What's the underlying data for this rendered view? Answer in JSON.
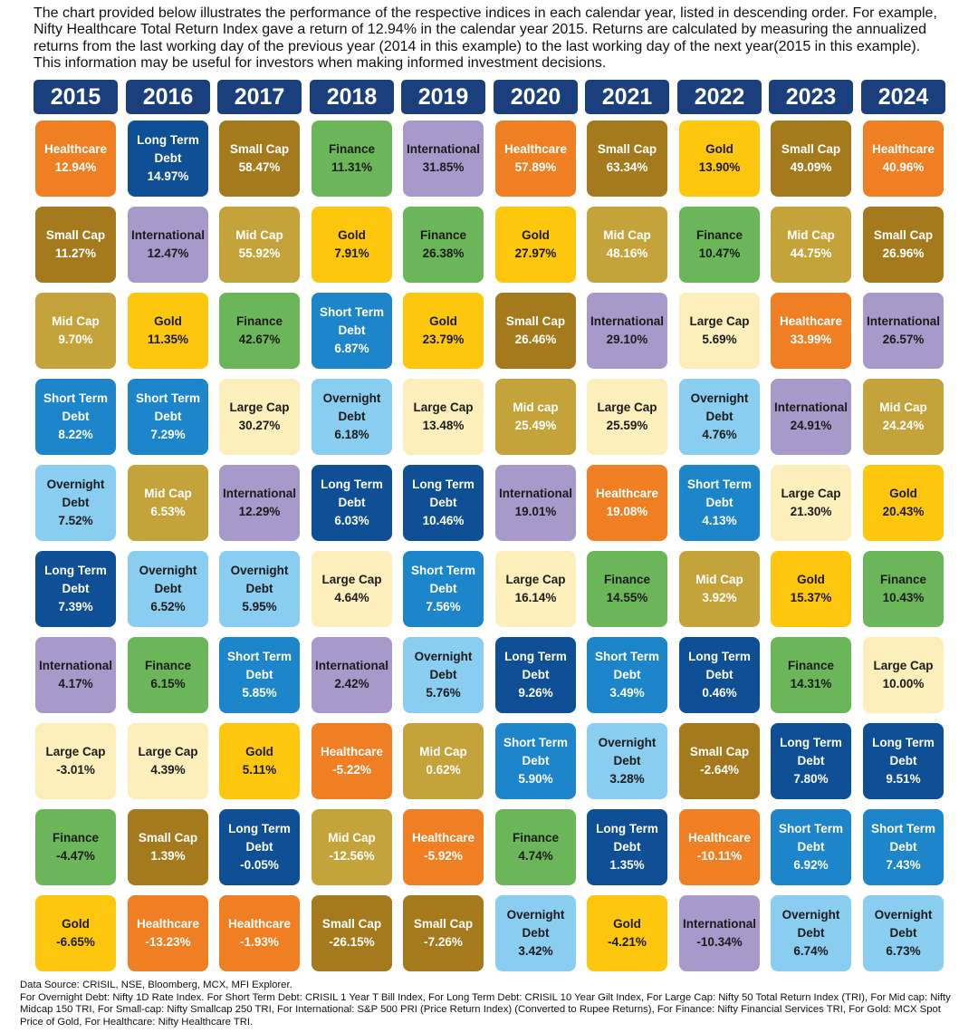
{
  "intro_text": "The chart provided below illustrates the performance of the respective indices in each calendar year, listed in descending order. For example, Nifty Healthcare Total Return Index gave a return of 12.94% in the calendar year 2015. Returns are calculated by measuring the annualized returns from the last working day of the previous year (2014 in this example) to the last working day of the next year(2015 in this example). This information may be useful for investors when making informed investment decisions.",
  "footer": {
    "source": "Data Source: CRISIL, NSE, Bloomberg, MCX, MFI Explorer.",
    "notes": "For Overnight Debt: Nifty 1D Rate Index. For Short Term Debt: CRISIL 1 Year T Bill Index, For Long Term Debt: CRISIL 10 Year Gilt Index, For Large Cap: Nifty 50 Total Return Index (TRI), For Mid cap: Nifty Midcap 150 TRI, For Small-cap: Nifty Smallcap 250 TRI, For International: S&P 500 PRI (Price Return Index) (Converted to Rupee Returns), For Finance: Nifty Financial Services TRI, For Gold: MCX Spot Price of Gold, For Healthcare: Nifty Healthcare TRI."
  },
  "colors": {
    "year_header_bg": "#1b3f7d",
    "Healthcare": {
      "bg": "#ef7f22",
      "fg": "#ffffff"
    },
    "Long Term Debt": {
      "bg": "#0e4f96",
      "fg": "#ffffff"
    },
    "Small Cap": {
      "bg": "#a47a1c",
      "fg": "#ffffff"
    },
    "Finance": {
      "bg": "#6cb65a",
      "fg": "#1b1b1b"
    },
    "International": {
      "bg": "#a79acb",
      "fg": "#1b1b1b"
    },
    "Gold": {
      "bg": "#fec60c",
      "fg": "#1b1b1b"
    },
    "Mid Cap": {
      "bg": "#c4a43a",
      "fg": "#ffffff"
    },
    "Short Term Debt": {
      "bg": "#1d86cb",
      "fg": "#ffffff"
    },
    "Large Cap": {
      "bg": "#fcefbc",
      "fg": "#1b1b1b"
    },
    "Overnight Debt": {
      "bg": "#89cdf1",
      "fg": "#1b1b1b"
    }
  },
  "chart_data": {
    "type": "table",
    "title": "",
    "years": [
      "2015",
      "2016",
      "2017",
      "2018",
      "2019",
      "2020",
      "2021",
      "2022",
      "2023",
      "2024"
    ],
    "columns": [
      {
        "year": "2015",
        "cells": [
          {
            "name": "Healthcare",
            "value": "12.94%"
          },
          {
            "name": "Small Cap",
            "value": "11.27%"
          },
          {
            "name": "Mid Cap",
            "value": "9.70%"
          },
          {
            "name": "Short Term Debt",
            "value": "8.22%"
          },
          {
            "name": "Overnight Debt",
            "value": "7.52%"
          },
          {
            "name": "Long Term Debt",
            "value": "7.39%"
          },
          {
            "name": "International",
            "value": "4.17%"
          },
          {
            "name": "Large Cap",
            "value": "-3.01%"
          },
          {
            "name": "Finance",
            "value": "-4.47%"
          },
          {
            "name": "Gold",
            "value": "-6.65%"
          }
        ]
      },
      {
        "year": "2016",
        "cells": [
          {
            "name": "Long Term Debt",
            "value": "14.97%"
          },
          {
            "name": "International",
            "value": "12.47%"
          },
          {
            "name": "Gold",
            "value": "11.35%"
          },
          {
            "name": "Short Term Debt",
            "value": "7.29%"
          },
          {
            "name": "Mid Cap",
            "value": "6.53%"
          },
          {
            "name": "Overnight Debt",
            "value": "6.52%"
          },
          {
            "name": "Finance",
            "value": "6.15%"
          },
          {
            "name": "Large Cap",
            "value": "4.39%"
          },
          {
            "name": "Small Cap",
            "value": "1.39%"
          },
          {
            "name": "Healthcare",
            "value": "-13.23%"
          }
        ]
      },
      {
        "year": "2017",
        "cells": [
          {
            "name": "Small Cap",
            "value": "58.47%"
          },
          {
            "name": "Mid Cap",
            "value": "55.92%"
          },
          {
            "name": "Finance",
            "value": "42.67%"
          },
          {
            "name": "Large Cap",
            "value": "30.27%"
          },
          {
            "name": "International",
            "value": "12.29%"
          },
          {
            "name": "Overnight Debt",
            "value": "5.95%"
          },
          {
            "name": "Short Term Debt",
            "value": "5.85%"
          },
          {
            "name": "Gold",
            "value": "5.11%"
          },
          {
            "name": "Long Term Debt",
            "value": "-0.05%"
          },
          {
            "name": "Healthcare",
            "value": "-1.93%"
          }
        ]
      },
      {
        "year": "2018",
        "cells": [
          {
            "name": "Finance",
            "value": "11.31%"
          },
          {
            "name": "Gold",
            "value": "7.91%"
          },
          {
            "name": "Short Term Debt",
            "value": "6.87%"
          },
          {
            "name": "Overnight Debt",
            "value": "6.18%"
          },
          {
            "name": "Long Term Debt",
            "value": "6.03%"
          },
          {
            "name": "Large Cap",
            "value": "4.64%"
          },
          {
            "name": "International",
            "value": "2.42%"
          },
          {
            "name": "Healthcare",
            "value": "-5.22%"
          },
          {
            "name": "Mid Cap",
            "value": "-12.56%"
          },
          {
            "name": "Small Cap",
            "value": "-26.15%"
          }
        ]
      },
      {
        "year": "2019",
        "cells": [
          {
            "name": "International",
            "value": "31.85%"
          },
          {
            "name": "Finance",
            "value": "26.38%"
          },
          {
            "name": "Gold",
            "value": "23.79%"
          },
          {
            "name": "Large Cap",
            "value": "13.48%"
          },
          {
            "name": "Long Term Debt",
            "value": "10.46%"
          },
          {
            "name": "Short Term Debt",
            "value": "7.56%"
          },
          {
            "name": "Overnight Debt",
            "value": "5.76%"
          },
          {
            "name": "Mid Cap",
            "value": "0.62%"
          },
          {
            "name": "Healthcare",
            "value": "-5.92%"
          },
          {
            "name": "Small Cap",
            "value": "-7.26%"
          }
        ]
      },
      {
        "year": "2020",
        "cells": [
          {
            "name": "Healthcare",
            "value": "57.89%"
          },
          {
            "name": "Gold",
            "value": "27.97%"
          },
          {
            "name": "Small Cap",
            "value": "26.46%"
          },
          {
            "name": "Mid cap",
            "value": "25.49%",
            "kind": "Mid Cap"
          },
          {
            "name": "International",
            "value": "19.01%"
          },
          {
            "name": "Large Cap",
            "value": "16.14%"
          },
          {
            "name": "Long Term Debt",
            "value": "9.26%"
          },
          {
            "name": "Short Term Debt",
            "value": "5.90%"
          },
          {
            "name": "Finance",
            "value": "4.74%"
          },
          {
            "name": "Overnight Debt",
            "value": "3.42%"
          }
        ]
      },
      {
        "year": "2021",
        "cells": [
          {
            "name": "Small Cap",
            "value": "63.34%"
          },
          {
            "name": "Mid Cap",
            "value": "48.16%"
          },
          {
            "name": "International",
            "value": "29.10%"
          },
          {
            "name": "Large Cap",
            "value": "25.59%"
          },
          {
            "name": "Healthcare",
            "value": "19.08%"
          },
          {
            "name": "Finance",
            "value": "14.55%"
          },
          {
            "name": "Short Term Debt",
            "value": "3.49%"
          },
          {
            "name": "Overnight Debt",
            "value": "3.28%"
          },
          {
            "name": "Long Term Debt",
            "value": "1.35%"
          },
          {
            "name": "Gold",
            "value": "-4.21%"
          }
        ]
      },
      {
        "year": "2022",
        "cells": [
          {
            "name": "Gold",
            "value": "13.90%"
          },
          {
            "name": "Finance",
            "value": "10.47%"
          },
          {
            "name": "Large Cap",
            "value": "5.69%"
          },
          {
            "name": "Overnight Debt",
            "value": "4.76%"
          },
          {
            "name": "Short Term Debt",
            "value": "4.13%"
          },
          {
            "name": "Mid Cap",
            "value": "3.92%"
          },
          {
            "name": "Long Term Debt",
            "value": "0.46%"
          },
          {
            "name": "Small Cap",
            "value": "-2.64%"
          },
          {
            "name": "Healthcare",
            "value": "-10.11%"
          },
          {
            "name": "International",
            "value": "-10.34%"
          }
        ]
      },
      {
        "year": "2023",
        "cells": [
          {
            "name": "Small Cap",
            "value": "49.09%"
          },
          {
            "name": "Mid Cap",
            "value": "44.75%"
          },
          {
            "name": "Healthcare",
            "value": "33.99%"
          },
          {
            "name": "International",
            "value": "24.91%"
          },
          {
            "name": "Large Cap",
            "value": "21.30%"
          },
          {
            "name": "Gold",
            "value": "15.37%"
          },
          {
            "name": "Finance",
            "value": "14.31%"
          },
          {
            "name": "Long Term Debt",
            "value": "7.80%"
          },
          {
            "name": "Short Term Debt",
            "value": "6.92%"
          },
          {
            "name": "Overnight Debt",
            "value": "6.74%"
          }
        ]
      },
      {
        "year": "2024",
        "cells": [
          {
            "name": "Healthcare",
            "value": "40.96%"
          },
          {
            "name": "Small Cap",
            "value": "26.96%"
          },
          {
            "name": "International",
            "value": "26.57%"
          },
          {
            "name": "Mid Cap",
            "value": "24.24%"
          },
          {
            "name": "Gold",
            "value": "20.43%"
          },
          {
            "name": "Finance",
            "value": "10.43%"
          },
          {
            "name": "Large Cap",
            "value": "10.00%"
          },
          {
            "name": "Long Term Debt",
            "value": "9.51%"
          },
          {
            "name": "Short Term Debt",
            "value": "7.43%"
          },
          {
            "name": "Overnight Debt",
            "value": "6.73%"
          }
        ]
      }
    ]
  }
}
